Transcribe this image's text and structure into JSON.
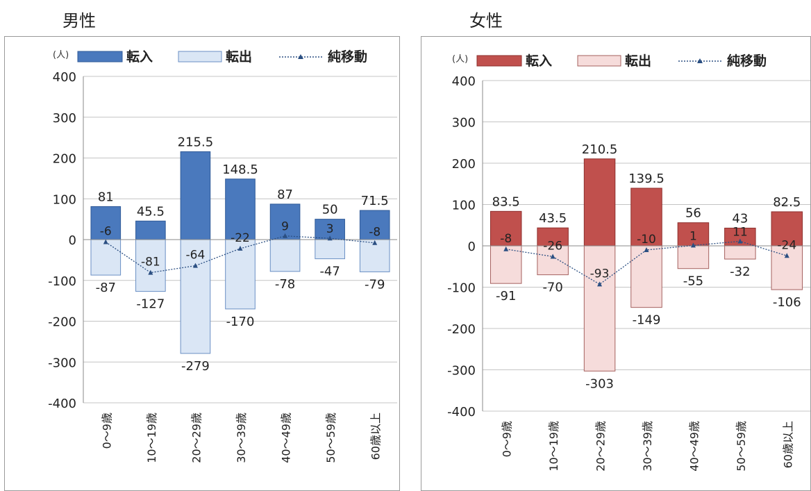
{
  "panels": [
    {
      "title": "男性"
    },
    {
      "title": "女性"
    }
  ],
  "chart_data": [
    {
      "type": "bar",
      "unit_label": "(人)",
      "legend": [
        "転入",
        "転出",
        "純移動"
      ],
      "legend_position": "top",
      "categories": [
        "0～9歳",
        "10～19歳",
        "20～29歳",
        "30～39歳",
        "40～49歳",
        "50～59歳",
        "60歳以上"
      ],
      "series": [
        {
          "name": "転入",
          "values": [
            81,
            45.5,
            215.5,
            148.5,
            87,
            50,
            71.5
          ]
        },
        {
          "name": "転出",
          "values": [
            -87,
            -127,
            -279,
            -170,
            -78,
            -47,
            -79
          ]
        },
        {
          "name": "純移動",
          "values": [
            -6,
            -81,
            -64,
            -22,
            9,
            3,
            -8
          ]
        }
      ],
      "ylim": [
        -400,
        400
      ],
      "yticks": [
        400,
        300,
        200,
        100,
        0,
        -100,
        -200,
        -300,
        -400
      ],
      "grid": true,
      "colors": {
        "in_fill": "#4a79bd",
        "in_stroke": "#2f5a98",
        "out_fill": "#dae6f5",
        "out_stroke": "#6a8fc4",
        "net": "#2b4f82"
      }
    },
    {
      "type": "bar",
      "unit_label": "(人)",
      "legend": [
        "転入",
        "転出",
        "純移動"
      ],
      "legend_position": "top",
      "categories": [
        "0～9歳",
        "10～19歳",
        "20～29歳",
        "30～39歳",
        "40～49歳",
        "50～59歳",
        "60歳以上"
      ],
      "series": [
        {
          "name": "転入",
          "values": [
            83.5,
            43.5,
            210.5,
            139.5,
            56,
            43,
            82.5
          ]
        },
        {
          "name": "転出",
          "values": [
            -91,
            -70,
            -303,
            -149,
            -55,
            -32,
            -106
          ]
        },
        {
          "name": "純移動",
          "values": [
            -8,
            -26,
            -93,
            -10,
            1,
            11,
            -24
          ]
        }
      ],
      "ylim": [
        -400,
        400
      ],
      "yticks": [
        400,
        300,
        200,
        100,
        0,
        -100,
        -200,
        -300,
        -400
      ],
      "grid": true,
      "colors": {
        "in_fill": "#c0504d",
        "in_stroke": "#8e2f2d",
        "out_fill": "#f6dcdb",
        "out_stroke": "#a4605e",
        "net": "#2b4f82"
      }
    }
  ]
}
